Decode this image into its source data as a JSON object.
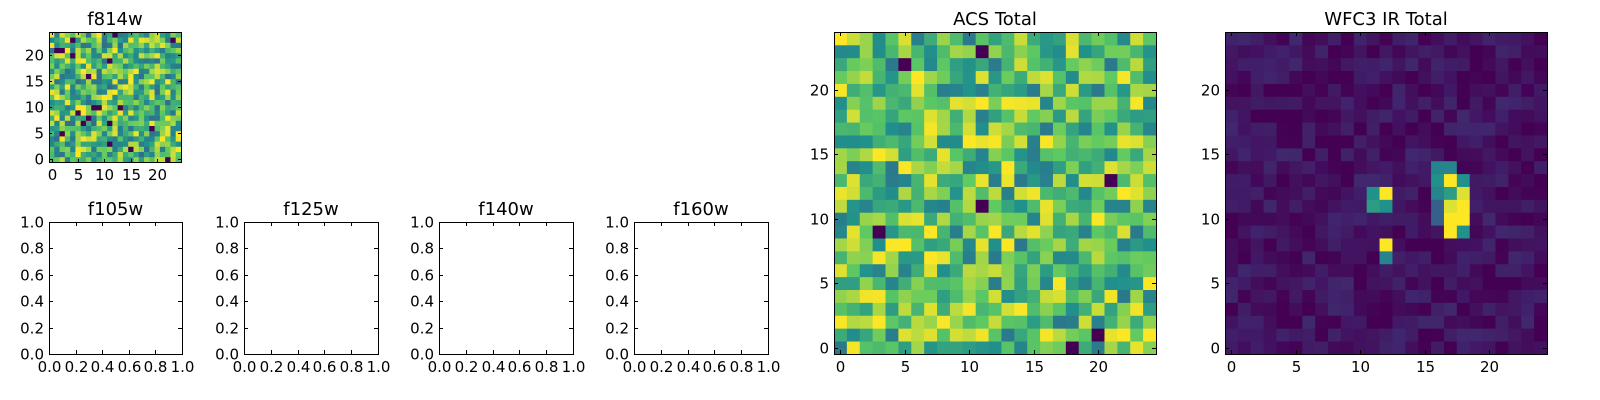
{
  "figure": {
    "colormap": "viridis",
    "colormap_stops": [
      "#440154",
      "#3b528b",
      "#21918c",
      "#5ec962",
      "#fde725"
    ]
  },
  "chart_data": [
    {
      "id": "f814w",
      "type": "heatmap",
      "title": "f814w",
      "grid_size": 25,
      "xlim": [
        -0.5,
        24.5
      ],
      "ylim": [
        -0.5,
        24.5
      ],
      "xticks": [
        0,
        5,
        10,
        15,
        20
      ],
      "yticks": [
        0,
        5,
        10,
        15,
        20
      ],
      "xtick_labels": [
        "0",
        "5",
        "10",
        "15",
        "20"
      ],
      "ytick_labels": [
        "0",
        "5",
        "10",
        "15",
        "20"
      ],
      "value_range": [
        0,
        1
      ],
      "pattern": "background noise",
      "noise": {
        "seed": 11,
        "mean": 0.68,
        "spread": 0.32,
        "outlier_rate": 0.05
      },
      "blobs": []
    },
    {
      "id": "f105w",
      "type": "empty",
      "title": "f105w",
      "xlim": [
        0,
        1
      ],
      "ylim": [
        0,
        1
      ],
      "xticks": [
        0,
        0.2,
        0.4,
        0.6,
        0.8,
        1.0
      ],
      "yticks": [
        0,
        0.2,
        0.4,
        0.6,
        0.8,
        1.0
      ],
      "xtick_labels": [
        "0.0",
        "0.2",
        "0.4",
        "0.6",
        "0.8",
        "1.0"
      ],
      "ytick_labels": [
        "0.0",
        "0.2",
        "0.4",
        "0.6",
        "0.8",
        "1.0"
      ]
    },
    {
      "id": "f125w",
      "type": "empty",
      "title": "f125w",
      "xlim": [
        0,
        1
      ],
      "ylim": [
        0,
        1
      ],
      "xticks": [
        0,
        0.2,
        0.4,
        0.6,
        0.8,
        1.0
      ],
      "yticks": [
        0,
        0.2,
        0.4,
        0.6,
        0.8,
        1.0
      ],
      "xtick_labels": [
        "0.0",
        "0.2",
        "0.4",
        "0.6",
        "0.8",
        "1.0"
      ],
      "ytick_labels": [
        "0.0",
        "0.2",
        "0.4",
        "0.6",
        "0.8",
        "1.0"
      ]
    },
    {
      "id": "f140w",
      "type": "empty",
      "title": "f140w",
      "xlim": [
        0,
        1
      ],
      "ylim": [
        0,
        1
      ],
      "xticks": [
        0,
        0.2,
        0.4,
        0.6,
        0.8,
        1.0
      ],
      "yticks": [
        0,
        0.2,
        0.4,
        0.6,
        0.8,
        1.0
      ],
      "xtick_labels": [
        "0.0",
        "0.2",
        "0.4",
        "0.6",
        "0.8",
        "1.0"
      ],
      "ytick_labels": [
        "0.0",
        "0.2",
        "0.4",
        "0.6",
        "0.8",
        "1.0"
      ]
    },
    {
      "id": "f160w",
      "type": "empty",
      "title": "f160w",
      "xlim": [
        0,
        1
      ],
      "ylim": [
        0,
        1
      ],
      "xticks": [
        0,
        0.2,
        0.4,
        0.6,
        0.8,
        1.0
      ],
      "yticks": [
        0,
        0.2,
        0.4,
        0.6,
        0.8,
        1.0
      ],
      "xtick_labels": [
        "0.0",
        "0.2",
        "0.4",
        "0.6",
        "0.8",
        "1.0"
      ],
      "ytick_labels": [
        "0.0",
        "0.2",
        "0.4",
        "0.6",
        "0.8",
        "1.0"
      ]
    },
    {
      "id": "acs_total",
      "type": "heatmap",
      "title": "ACS Total",
      "grid_size": 25,
      "xlim": [
        -0.5,
        24.5
      ],
      "ylim": [
        -0.5,
        24.5
      ],
      "xticks": [
        0,
        5,
        10,
        15,
        20
      ],
      "yticks": [
        0,
        5,
        10,
        15,
        20
      ],
      "xtick_labels": [
        "0",
        "5",
        "10",
        "15",
        "20"
      ],
      "ytick_labels": [
        "0",
        "5",
        "10",
        "15",
        "20"
      ],
      "value_range": [
        0,
        1
      ],
      "pattern": "background noise",
      "noise": {
        "seed": 7,
        "mean": 0.7,
        "spread": 0.3,
        "outlier_rate": 0.04
      },
      "blobs": []
    },
    {
      "id": "wfc3_ir_total",
      "type": "heatmap",
      "title": "WFC3 IR Total",
      "grid_size": 25,
      "xlim": [
        -0.5,
        24.5
      ],
      "ylim": [
        -0.5,
        24.5
      ],
      "xticks": [
        0,
        5,
        10,
        15,
        20
      ],
      "yticks": [
        0,
        5,
        10,
        15,
        20
      ],
      "xtick_labels": [
        "0",
        "5",
        "10",
        "15",
        "20"
      ],
      "ytick_labels": [
        "0",
        "5",
        "10",
        "15",
        "20"
      ],
      "value_range": [
        0,
        1
      ],
      "pattern": "dark background with bright sources",
      "noise": {
        "seed": 3,
        "mean": 0.05,
        "spread": 0.07,
        "outlier_rate": 0
      },
      "blobs": [
        {
          "x": 16,
          "y": 14,
          "value": 0.45
        },
        {
          "x": 17,
          "y": 14,
          "value": 0.45
        },
        {
          "x": 16,
          "y": 13,
          "value": 0.5
        },
        {
          "x": 17,
          "y": 13,
          "value": 1.0
        },
        {
          "x": 18,
          "y": 13,
          "value": 0.5
        },
        {
          "x": 16,
          "y": 12,
          "value": 0.45
        },
        {
          "x": 17,
          "y": 12,
          "value": 0.55
        },
        {
          "x": 18,
          "y": 12,
          "value": 0.95
        },
        {
          "x": 17,
          "y": 11,
          "value": 0.95
        },
        {
          "x": 18,
          "y": 11,
          "value": 1.0
        },
        {
          "x": 17,
          "y": 10,
          "value": 1.0
        },
        {
          "x": 18,
          "y": 10,
          "value": 1.0
        },
        {
          "x": 17,
          "y": 9,
          "value": 1.0
        },
        {
          "x": 18,
          "y": 9,
          "value": 0.5
        },
        {
          "x": 16,
          "y": 11,
          "value": 0.3
        },
        {
          "x": 16,
          "y": 10,
          "value": 0.3
        },
        {
          "x": 11,
          "y": 12,
          "value": 0.5
        },
        {
          "x": 12,
          "y": 12,
          "value": 1.0
        },
        {
          "x": 11,
          "y": 11,
          "value": 0.55
        },
        {
          "x": 12,
          "y": 11,
          "value": 0.5
        },
        {
          "x": 12,
          "y": 8,
          "value": 1.0
        },
        {
          "x": 12,
          "y": 7,
          "value": 0.45
        }
      ]
    }
  ]
}
